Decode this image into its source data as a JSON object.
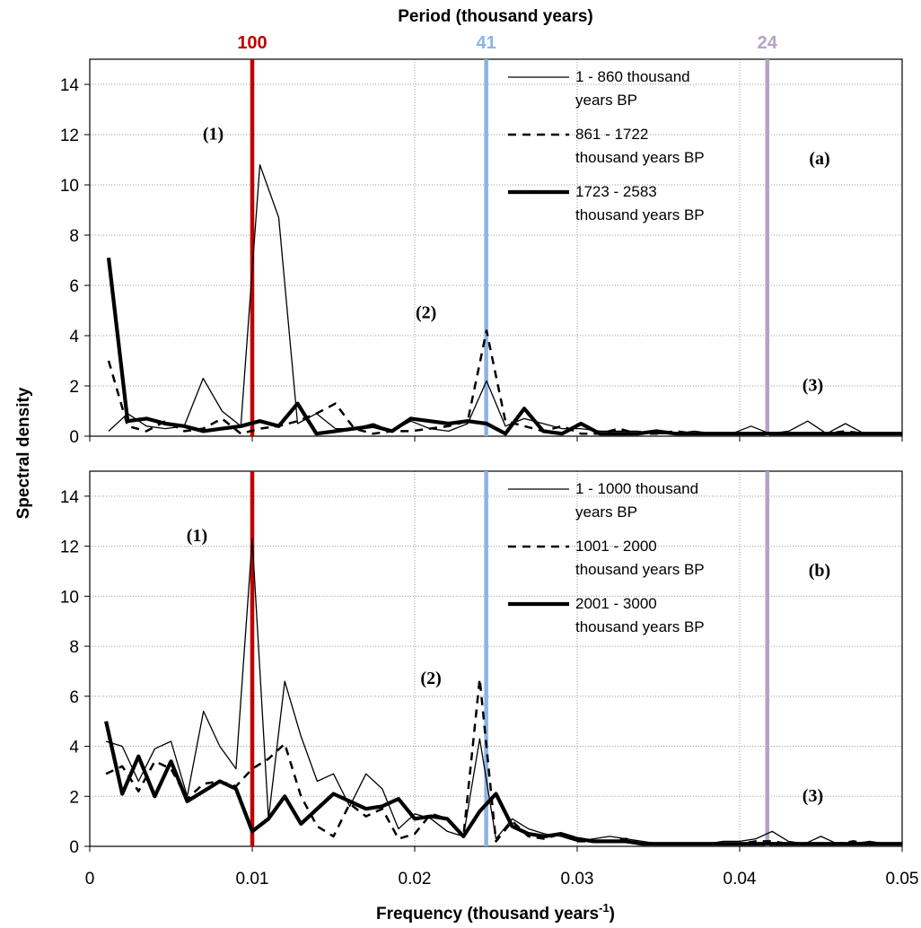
{
  "chart_data": {
    "type": "line",
    "xlabel": "Frequency (thousand years",
    "xlabel_sup": "-1",
    "xlabel_tail": ")",
    "ylabel": "Spectral density",
    "top_axis_label": "Period (thousand years)",
    "xlim": [
      0,
      0.05
    ],
    "ylim": [
      0,
      15
    ],
    "x_ticks": [
      "0",
      "0.01",
      "0.02",
      "0.03",
      "0.04",
      "0.05"
    ],
    "y_ticks": [
      "0",
      "2",
      "4",
      "6",
      "8",
      "10",
      "12",
      "14"
    ],
    "grid": true,
    "period_markers": [
      {
        "label": "100",
        "frequency": 0.01,
        "color": "#c00000"
      },
      {
        "label": "41",
        "frequency": 0.0244,
        "color": "#8db3e2"
      },
      {
        "label": "24",
        "frequency": 0.0417,
        "color": "#b3a2c7"
      }
    ],
    "panels": [
      {
        "panel_label": "(a)",
        "annotations": [
          {
            "text": "(1)",
            "x": 0.0076,
            "y": 11.8
          },
          {
            "text": "(2)",
            "x": 0.0207,
            "y": 4.7
          },
          {
            "text": "(3)",
            "x": 0.0445,
            "y": 1.8
          }
        ],
        "series": [
          {
            "name": "1 - 860 thousand years BP",
            "style": "thin",
            "x": [
              0.00116,
              0.00233,
              0.00349,
              0.00465,
              0.00581,
              0.00698,
              0.00814,
              0.0093,
              0.01047,
              0.01163,
              0.01279,
              0.01395,
              0.01512,
              0.01628,
              0.01744,
              0.0186,
              0.01977,
              0.02093,
              0.02209,
              0.02326,
              0.02442,
              0.02558,
              0.02674,
              0.02791,
              0.02907,
              0.03023,
              0.0314,
              0.03256,
              0.03372,
              0.03488,
              0.03605,
              0.03721,
              0.03837,
              0.03953,
              0.0407,
              0.04186,
              0.04302,
              0.04419,
              0.04535,
              0.04651,
              0.04767,
              0.04884,
              0.05
            ],
            "y": [
              0.2,
              0.9,
              0.4,
              0.3,
              0.4,
              2.3,
              1.0,
              0.4,
              10.8,
              8.7,
              0.5,
              0.9,
              0.3,
              0.3,
              0.5,
              0.2,
              0.6,
              0.3,
              0.2,
              0.5,
              2.2,
              0.4,
              0.7,
              0.5,
              0.3,
              0.3,
              0.2,
              0.2,
              0.2,
              0.1,
              0.1,
              0.2,
              0.1,
              0.1,
              0.4,
              0.1,
              0.2,
              0.6,
              0.1,
              0.5,
              0.1,
              0.1,
              0.1
            ]
          },
          {
            "name": "861 - 1722 thousand years BP",
            "style": "dashed",
            "x": [
              0.00116,
              0.00233,
              0.00349,
              0.00465,
              0.00581,
              0.00698,
              0.00814,
              0.0093,
              0.01047,
              0.01163,
              0.01279,
              0.01395,
              0.01512,
              0.01628,
              0.01744,
              0.0186,
              0.01977,
              0.02093,
              0.02209,
              0.02326,
              0.02442,
              0.02558,
              0.02674,
              0.02791,
              0.02907,
              0.03023,
              0.0314,
              0.03256,
              0.03372,
              0.03488,
              0.03605,
              0.03721,
              0.03837,
              0.03953,
              0.0407,
              0.04186,
              0.04302,
              0.04419,
              0.04535,
              0.04651,
              0.04767,
              0.04884,
              0.05
            ],
            "y": [
              3.0,
              0.4,
              0.2,
              0.6,
              0.2,
              0.3,
              0.7,
              0.1,
              0.3,
              0.4,
              0.6,
              0.9,
              1.3,
              0.3,
              0.1,
              0.2,
              0.2,
              0.3,
              0.4,
              0.6,
              4.2,
              0.6,
              0.4,
              0.2,
              0.4,
              0.1,
              0.1,
              0.3,
              0.1,
              0.1,
              0.2,
              0.1,
              0.1,
              0.1,
              0.1,
              0.1,
              0.1,
              0.1,
              0.1,
              0.2,
              0.1,
              0.1,
              0.1
            ]
          },
          {
            "name": "1723 - 2583 thousand years BP",
            "style": "thick",
            "x": [
              0.00116,
              0.00233,
              0.00349,
              0.00465,
              0.00581,
              0.00698,
              0.00814,
              0.0093,
              0.01047,
              0.01163,
              0.01279,
              0.01395,
              0.01512,
              0.01628,
              0.01744,
              0.0186,
              0.01977,
              0.02093,
              0.02209,
              0.02326,
              0.02442,
              0.02558,
              0.02674,
              0.02791,
              0.02907,
              0.03023,
              0.0314,
              0.03256,
              0.03372,
              0.03488,
              0.03605,
              0.03721,
              0.03837,
              0.03953,
              0.0407,
              0.04186,
              0.04302,
              0.04419,
              0.04535,
              0.04651,
              0.04767,
              0.04884,
              0.05
            ],
            "y": [
              7.1,
              0.6,
              0.7,
              0.5,
              0.4,
              0.2,
              0.3,
              0.4,
              0.6,
              0.4,
              1.3,
              0.1,
              0.2,
              0.3,
              0.4,
              0.2,
              0.7,
              0.6,
              0.5,
              0.6,
              0.5,
              0.1,
              1.1,
              0.2,
              0.1,
              0.5,
              0.1,
              0.1,
              0.1,
              0.2,
              0.1,
              0.1,
              0.1,
              0.1,
              0.1,
              0.1,
              0.1,
              0.1,
              0.1,
              0.1,
              0.1,
              0.1,
              0.1
            ]
          }
        ]
      },
      {
        "panel_label": "(b)",
        "annotations": [
          {
            "text": "(1)",
            "x": 0.0066,
            "y": 12.2
          },
          {
            "text": "(2)",
            "x": 0.021,
            "y": 6.5
          },
          {
            "text": "(3)",
            "x": 0.0445,
            "y": 1.8
          }
        ],
        "series": [
          {
            "name": "1 - 1000 thousand years BP",
            "style": "thin",
            "x": [
              0.001,
              0.002,
              0.003,
              0.004,
              0.005,
              0.006,
              0.007,
              0.008,
              0.009,
              0.01,
              0.011,
              0.012,
              0.013,
              0.014,
              0.015,
              0.016,
              0.017,
              0.018,
              0.019,
              0.02,
              0.021,
              0.022,
              0.023,
              0.024,
              0.025,
              0.026,
              0.027,
              0.028,
              0.029,
              0.03,
              0.031,
              0.032,
              0.033,
              0.034,
              0.035,
              0.036,
              0.037,
              0.038,
              0.039,
              0.04,
              0.041,
              0.042,
              0.043,
              0.044,
              0.045,
              0.046,
              0.047,
              0.048,
              0.049,
              0.05
            ],
            "y": [
              4.2,
              4.0,
              2.6,
              3.9,
              4.2,
              2.0,
              5.4,
              4.0,
              3.1,
              12.3,
              1.1,
              6.6,
              4.4,
              2.6,
              2.9,
              1.6,
              2.9,
              2.3,
              0.7,
              1.3,
              1.1,
              0.6,
              0.4,
              4.3,
              0.3,
              1.1,
              0.7,
              0.5,
              0.4,
              0.2,
              0.3,
              0.4,
              0.3,
              0.2,
              0.1,
              0.1,
              0.1,
              0.1,
              0.2,
              0.2,
              0.3,
              0.6,
              0.2,
              0.1,
              0.4,
              0.1,
              0.1,
              0.2,
              0.1,
              0.1
            ]
          },
          {
            "name": "1001 - 2000 thousand years BP",
            "style": "dashed",
            "x": [
              0.001,
              0.002,
              0.003,
              0.004,
              0.005,
              0.006,
              0.007,
              0.008,
              0.009,
              0.01,
              0.011,
              0.012,
              0.013,
              0.014,
              0.015,
              0.016,
              0.017,
              0.018,
              0.019,
              0.02,
              0.021,
              0.022,
              0.023,
              0.024,
              0.025,
              0.026,
              0.027,
              0.028,
              0.029,
              0.03,
              0.031,
              0.032,
              0.033,
              0.034,
              0.035,
              0.036,
              0.037,
              0.038,
              0.039,
              0.04,
              0.041,
              0.042,
              0.043,
              0.044,
              0.045,
              0.046,
              0.047,
              0.048,
              0.049,
              0.05
            ],
            "y": [
              2.9,
              3.2,
              2.2,
              3.4,
              3.1,
              1.9,
              2.5,
              2.6,
              2.4,
              3.1,
              3.5,
              4.1,
              2.0,
              0.8,
              0.4,
              1.7,
              1.2,
              1.5,
              0.3,
              0.5,
              1.3,
              1.1,
              0.4,
              6.7,
              0.2,
              1.0,
              0.4,
              0.3,
              0.5,
              0.2,
              0.2,
              0.2,
              0.3,
              0.1,
              0.1,
              0.1,
              0.1,
              0.1,
              0.1,
              0.1,
              0.2,
              0.2,
              0.1,
              0.1,
              0.1,
              0.1,
              0.2,
              0.1,
              0.1,
              0.1
            ]
          },
          {
            "name": "2001 - 3000 thousand years BP",
            "style": "thick",
            "x": [
              0.001,
              0.002,
              0.003,
              0.004,
              0.005,
              0.006,
              0.007,
              0.008,
              0.009,
              0.01,
              0.011,
              0.012,
              0.013,
              0.014,
              0.015,
              0.016,
              0.017,
              0.018,
              0.019,
              0.02,
              0.021,
              0.022,
              0.023,
              0.024,
              0.025,
              0.026,
              0.027,
              0.028,
              0.029,
              0.03,
              0.031,
              0.032,
              0.033,
              0.034,
              0.035,
              0.036,
              0.037,
              0.038,
              0.039,
              0.04,
              0.041,
              0.042,
              0.043,
              0.044,
              0.045,
              0.046,
              0.047,
              0.048,
              0.049,
              0.05
            ],
            "y": [
              5.0,
              2.1,
              3.6,
              2.0,
              3.4,
              1.8,
              2.2,
              2.6,
              2.3,
              0.6,
              1.1,
              2.0,
              0.9,
              1.5,
              2.1,
              1.8,
              1.5,
              1.6,
              1.9,
              1.1,
              1.2,
              1.1,
              0.4,
              1.4,
              2.1,
              0.8,
              0.5,
              0.4,
              0.5,
              0.3,
              0.2,
              0.2,
              0.2,
              0.1,
              0.1,
              0.1,
              0.1,
              0.1,
              0.1,
              0.1,
              0.1,
              0.1,
              0.1,
              0.1,
              0.1,
              0.1,
              0.1,
              0.1,
              0.1,
              0.1
            ]
          }
        ]
      }
    ]
  }
}
